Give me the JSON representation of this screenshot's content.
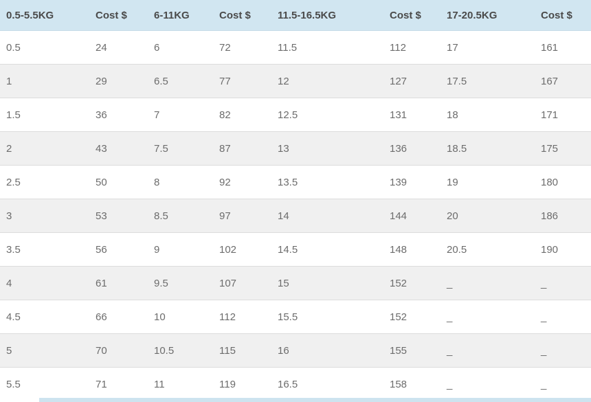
{
  "table": {
    "columns": [
      "0.5-5.5KG",
      "Cost $",
      "6-11KG",
      "Cost $",
      "11.5-16.5KG",
      "Cost $",
      "17-20.5KG",
      "Cost $"
    ],
    "rows": [
      [
        "0.5",
        "24",
        "6",
        "72",
        "11.5",
        "112",
        "17",
        "161"
      ],
      [
        "1",
        "29",
        "6.5",
        "77",
        "12",
        "127",
        "17.5",
        "167"
      ],
      [
        "1.5",
        "36",
        "7",
        "82",
        "12.5",
        "131",
        "18",
        "171"
      ],
      [
        "2",
        "43",
        "7.5",
        "87",
        "13",
        "136",
        "18.5",
        "175"
      ],
      [
        "2.5",
        "50",
        "8",
        "92",
        "13.5",
        "139",
        "19",
        "180"
      ],
      [
        "3",
        "53",
        "8.5",
        "97",
        "14",
        "144",
        "20",
        "186"
      ],
      [
        "3.5",
        "56",
        "9",
        "102",
        "14.5",
        "148",
        "20.5",
        "190"
      ],
      [
        "4",
        "61",
        "9.5",
        "107",
        "15",
        "152",
        "_",
        "_"
      ],
      [
        "4.5",
        "66",
        "10",
        "112",
        "15.5",
        "152",
        "_",
        "_"
      ],
      [
        "5",
        "70",
        "10.5",
        "115",
        "16",
        "155",
        "_",
        "_"
      ],
      [
        "5.5",
        "71",
        "11",
        "119",
        "16.5",
        "158",
        "_",
        "_"
      ]
    ]
  },
  "colors": {
    "header_bg": "#d1e6f1",
    "header_text": "#4a4a4a",
    "body_text": "#6c6c6c",
    "alt_row_bg": "#f0f0f0",
    "row_border": "#dcdcdc",
    "bottom_bar": "#cde3ef"
  }
}
